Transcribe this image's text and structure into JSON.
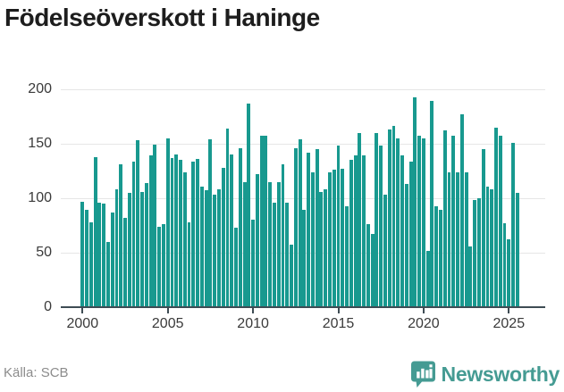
{
  "header": {
    "title": "Födelseöverskott i Haninge"
  },
  "footer": {
    "source": "Källa: SCB",
    "brand": "Newsworthy",
    "logo_icon": "bar-chart-badge"
  },
  "colors": {
    "bar": "#18998f",
    "brand": "#459b93",
    "grid": "#e6e6e6",
    "axis": "#3e4c54",
    "title_text": "#1d1d1d",
    "tick_text": "#3a3a3a",
    "source_text": "#8c8c8c"
  },
  "chart_data": {
    "type": "bar",
    "title": "Födelseöverskott i Haninge",
    "frequency": "quarterly",
    "xlabel": "",
    "ylabel": "",
    "ylim": [
      0,
      200
    ],
    "yticks": [
      0,
      50,
      100,
      150,
      200
    ],
    "xticks": [
      2000,
      2005,
      2010,
      2015,
      2020,
      2025
    ],
    "grid": "horizontal",
    "legend": "none",
    "source": "SCB",
    "x": [
      "2000 Q1",
      "2000 Q2",
      "2000 Q3",
      "2000 Q4",
      "2001 Q1",
      "2001 Q2",
      "2001 Q3",
      "2001 Q4",
      "2002 Q1",
      "2002 Q2",
      "2002 Q3",
      "2002 Q4",
      "2003 Q1",
      "2003 Q2",
      "2003 Q3",
      "2003 Q4",
      "2004 Q1",
      "2004 Q2",
      "2004 Q3",
      "2004 Q4",
      "2005 Q1",
      "2005 Q2",
      "2005 Q3",
      "2005 Q4",
      "2006 Q1",
      "2006 Q2",
      "2006 Q3",
      "2006 Q4",
      "2007 Q1",
      "2007 Q2",
      "2007 Q3",
      "2007 Q4",
      "2008 Q1",
      "2008 Q2",
      "2008 Q3",
      "2008 Q4",
      "2009 Q1",
      "2009 Q2",
      "2009 Q3",
      "2009 Q4",
      "2010 Q1",
      "2010 Q2",
      "2010 Q3",
      "2010 Q4",
      "2011 Q1",
      "2011 Q2",
      "2011 Q3",
      "2011 Q4",
      "2012 Q1",
      "2012 Q2",
      "2012 Q3",
      "2012 Q4",
      "2013 Q1",
      "2013 Q2",
      "2013 Q3",
      "2013 Q4",
      "2014 Q1",
      "2014 Q2",
      "2014 Q3",
      "2014 Q4",
      "2015 Q1",
      "2015 Q2",
      "2015 Q3",
      "2015 Q4",
      "2016 Q1",
      "2016 Q2",
      "2016 Q3",
      "2016 Q4",
      "2017 Q1",
      "2017 Q2",
      "2017 Q3",
      "2017 Q4",
      "2018 Q1",
      "2018 Q2",
      "2018 Q3",
      "2018 Q4",
      "2019 Q1",
      "2019 Q2",
      "2019 Q3",
      "2019 Q4",
      "2020 Q1",
      "2020 Q2",
      "2020 Q3",
      "2020 Q4",
      "2021 Q1",
      "2021 Q2",
      "2021 Q3",
      "2021 Q4",
      "2022 Q1",
      "2022 Q2",
      "2022 Q3",
      "2022 Q4",
      "2023 Q1",
      "2023 Q2",
      "2023 Q3",
      "2023 Q4",
      "2024 Q1",
      "2024 Q2",
      "2024 Q3",
      "2024 Q4",
      "2025 Q1",
      "2025 Q2",
      "2025 Q3"
    ],
    "values": [
      97,
      89,
      78,
      138,
      96,
      95,
      60,
      87,
      108,
      131,
      82,
      105,
      134,
      153,
      106,
      114,
      139,
      149,
      74,
      76,
      155,
      137,
      140,
      135,
      124,
      78,
      134,
      136,
      111,
      107,
      154,
      103,
      108,
      128,
      164,
      140,
      73,
      146,
      115,
      187,
      80,
      122,
      157,
      157,
      115,
      96,
      115,
      131,
      96,
      57,
      146,
      154,
      89,
      142,
      124,
      145,
      106,
      108,
      124,
      126,
      148,
      127,
      93,
      135,
      139,
      160,
      139,
      76,
      67,
      160,
      148,
      103,
      163,
      166,
      155,
      139,
      113,
      134,
      193,
      157,
      155,
      52,
      189,
      93,
      89,
      162,
      124,
      157,
      124,
      177,
      124,
      56,
      98,
      100,
      145,
      111,
      108,
      165,
      157,
      77,
      62,
      151,
      105
    ]
  }
}
